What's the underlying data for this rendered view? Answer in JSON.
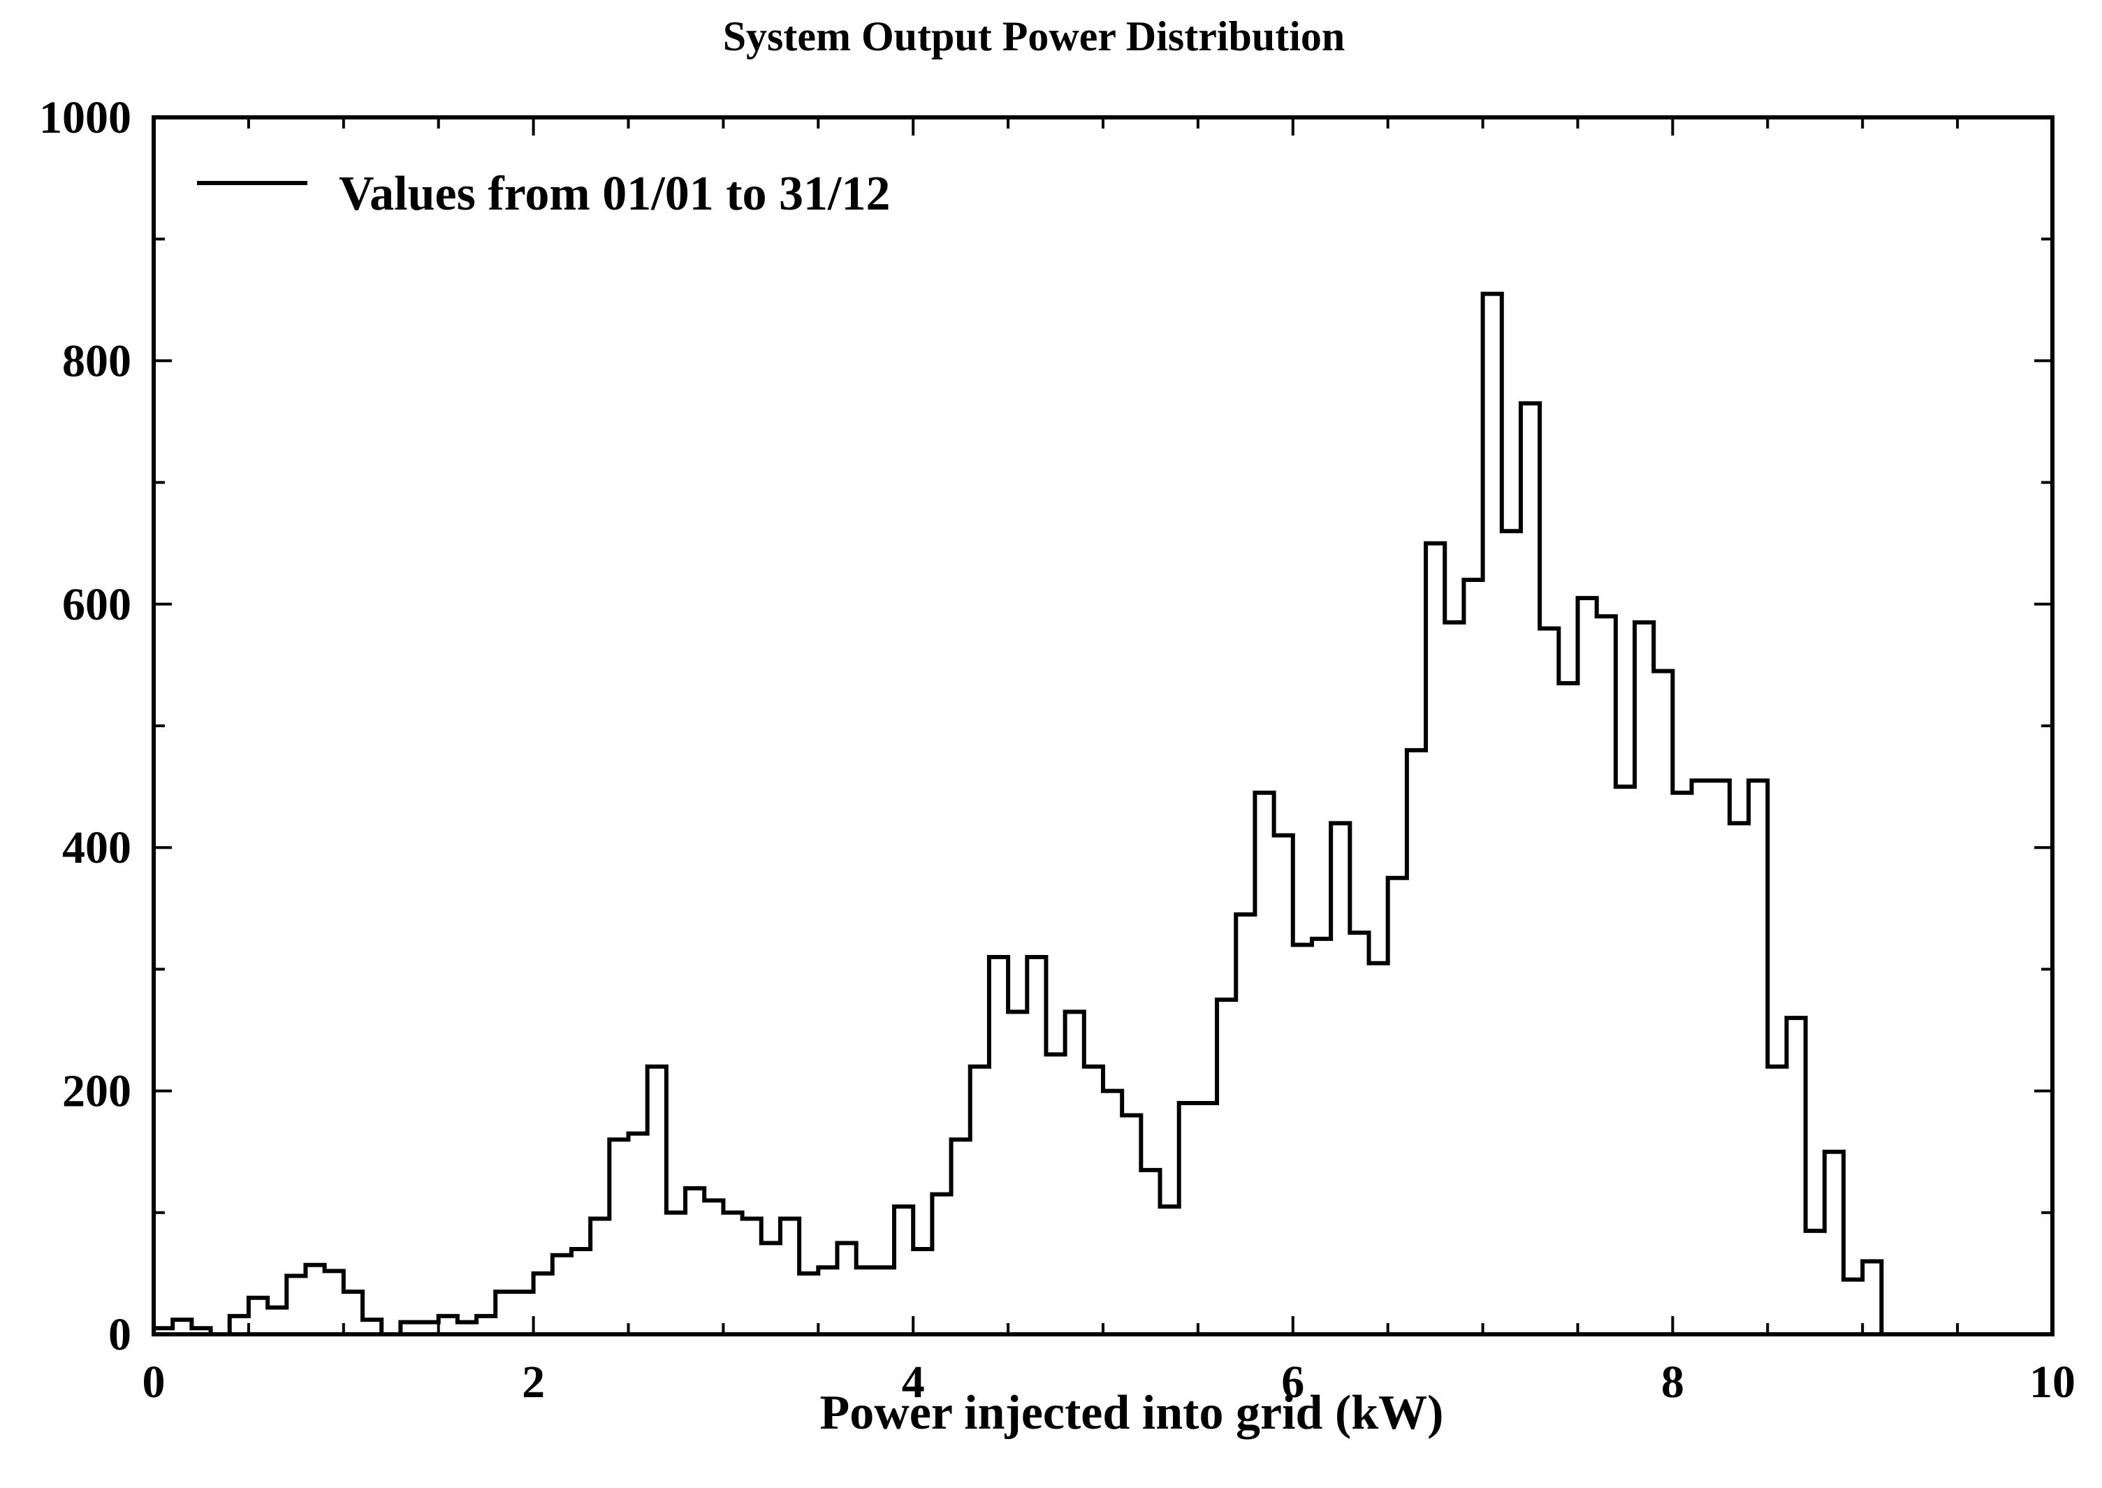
{
  "chart_data": {
    "type": "histogram",
    "title": "System Output Power Distribution",
    "xlabel": "Power injected into grid (kW)",
    "ylabel": "",
    "xlim": [
      0,
      10
    ],
    "ylim": [
      0,
      1000
    ],
    "x_ticks": [
      0,
      2,
      4,
      6,
      8,
      10
    ],
    "x_tick_labels": [
      "0",
      "2",
      "4",
      "6",
      "8",
      "10"
    ],
    "y_ticks": [
      0,
      200,
      400,
      600,
      800,
      1000
    ],
    "y_tick_labels": [
      "0",
      "200",
      "400",
      "600",
      "800",
      "1000"
    ],
    "legend": {
      "position": "top-left",
      "entries": [
        "Values from 01/01 to 31/12"
      ]
    },
    "bin_width_kw": 0.1,
    "series": [
      {
        "name": "Values from 01/01 to 31/12",
        "bin_starts": [
          0.0,
          0.1,
          0.2,
          0.3,
          0.4,
          0.5,
          0.6,
          0.7,
          0.8,
          0.9,
          1.0,
          1.1,
          1.2,
          1.3,
          1.4,
          1.5,
          1.6,
          1.7,
          1.8,
          1.9,
          2.0,
          2.1,
          2.2,
          2.3,
          2.4,
          2.5,
          2.6,
          2.7,
          2.8,
          2.9,
          3.0,
          3.1,
          3.2,
          3.3,
          3.4,
          3.5,
          3.6,
          3.7,
          3.8,
          3.9,
          4.0,
          4.1,
          4.2,
          4.3,
          4.4,
          4.5,
          4.6,
          4.7,
          4.8,
          4.9,
          5.0,
          5.1,
          5.2,
          5.3,
          5.4,
          5.5,
          5.6,
          5.7,
          5.8,
          5.9,
          6.0,
          6.1,
          6.2,
          6.3,
          6.4,
          6.5,
          6.6,
          6.7,
          6.8,
          6.9,
          7.0,
          7.1,
          7.2,
          7.3,
          7.4,
          7.5,
          7.6,
          7.7,
          7.8,
          7.9,
          8.0,
          8.1,
          8.2,
          8.3,
          8.4,
          8.5,
          8.6,
          8.7,
          8.8,
          8.9,
          9.0,
          9.1
        ],
        "values": [
          5,
          12,
          5,
          0,
          15,
          30,
          22,
          48,
          57,
          52,
          35,
          12,
          0,
          10,
          10,
          15,
          10,
          15,
          35,
          35,
          50,
          65,
          70,
          95,
          160,
          165,
          220,
          100,
          120,
          110,
          100,
          95,
          75,
          95,
          50,
          55,
          75,
          55,
          55,
          105,
          70,
          115,
          160,
          220,
          310,
          265,
          310,
          230,
          265,
          220,
          200,
          180,
          135,
          105,
          190,
          190,
          275,
          345,
          445,
          410,
          320,
          325,
          420,
          330,
          305,
          375,
          480,
          650,
          585,
          620,
          855,
          660,
          765,
          580,
          535,
          605,
          590,
          450,
          585,
          545,
          445,
          455,
          455,
          420,
          455,
          220,
          260,
          85,
          150,
          45,
          60,
          0
        ]
      }
    ]
  }
}
